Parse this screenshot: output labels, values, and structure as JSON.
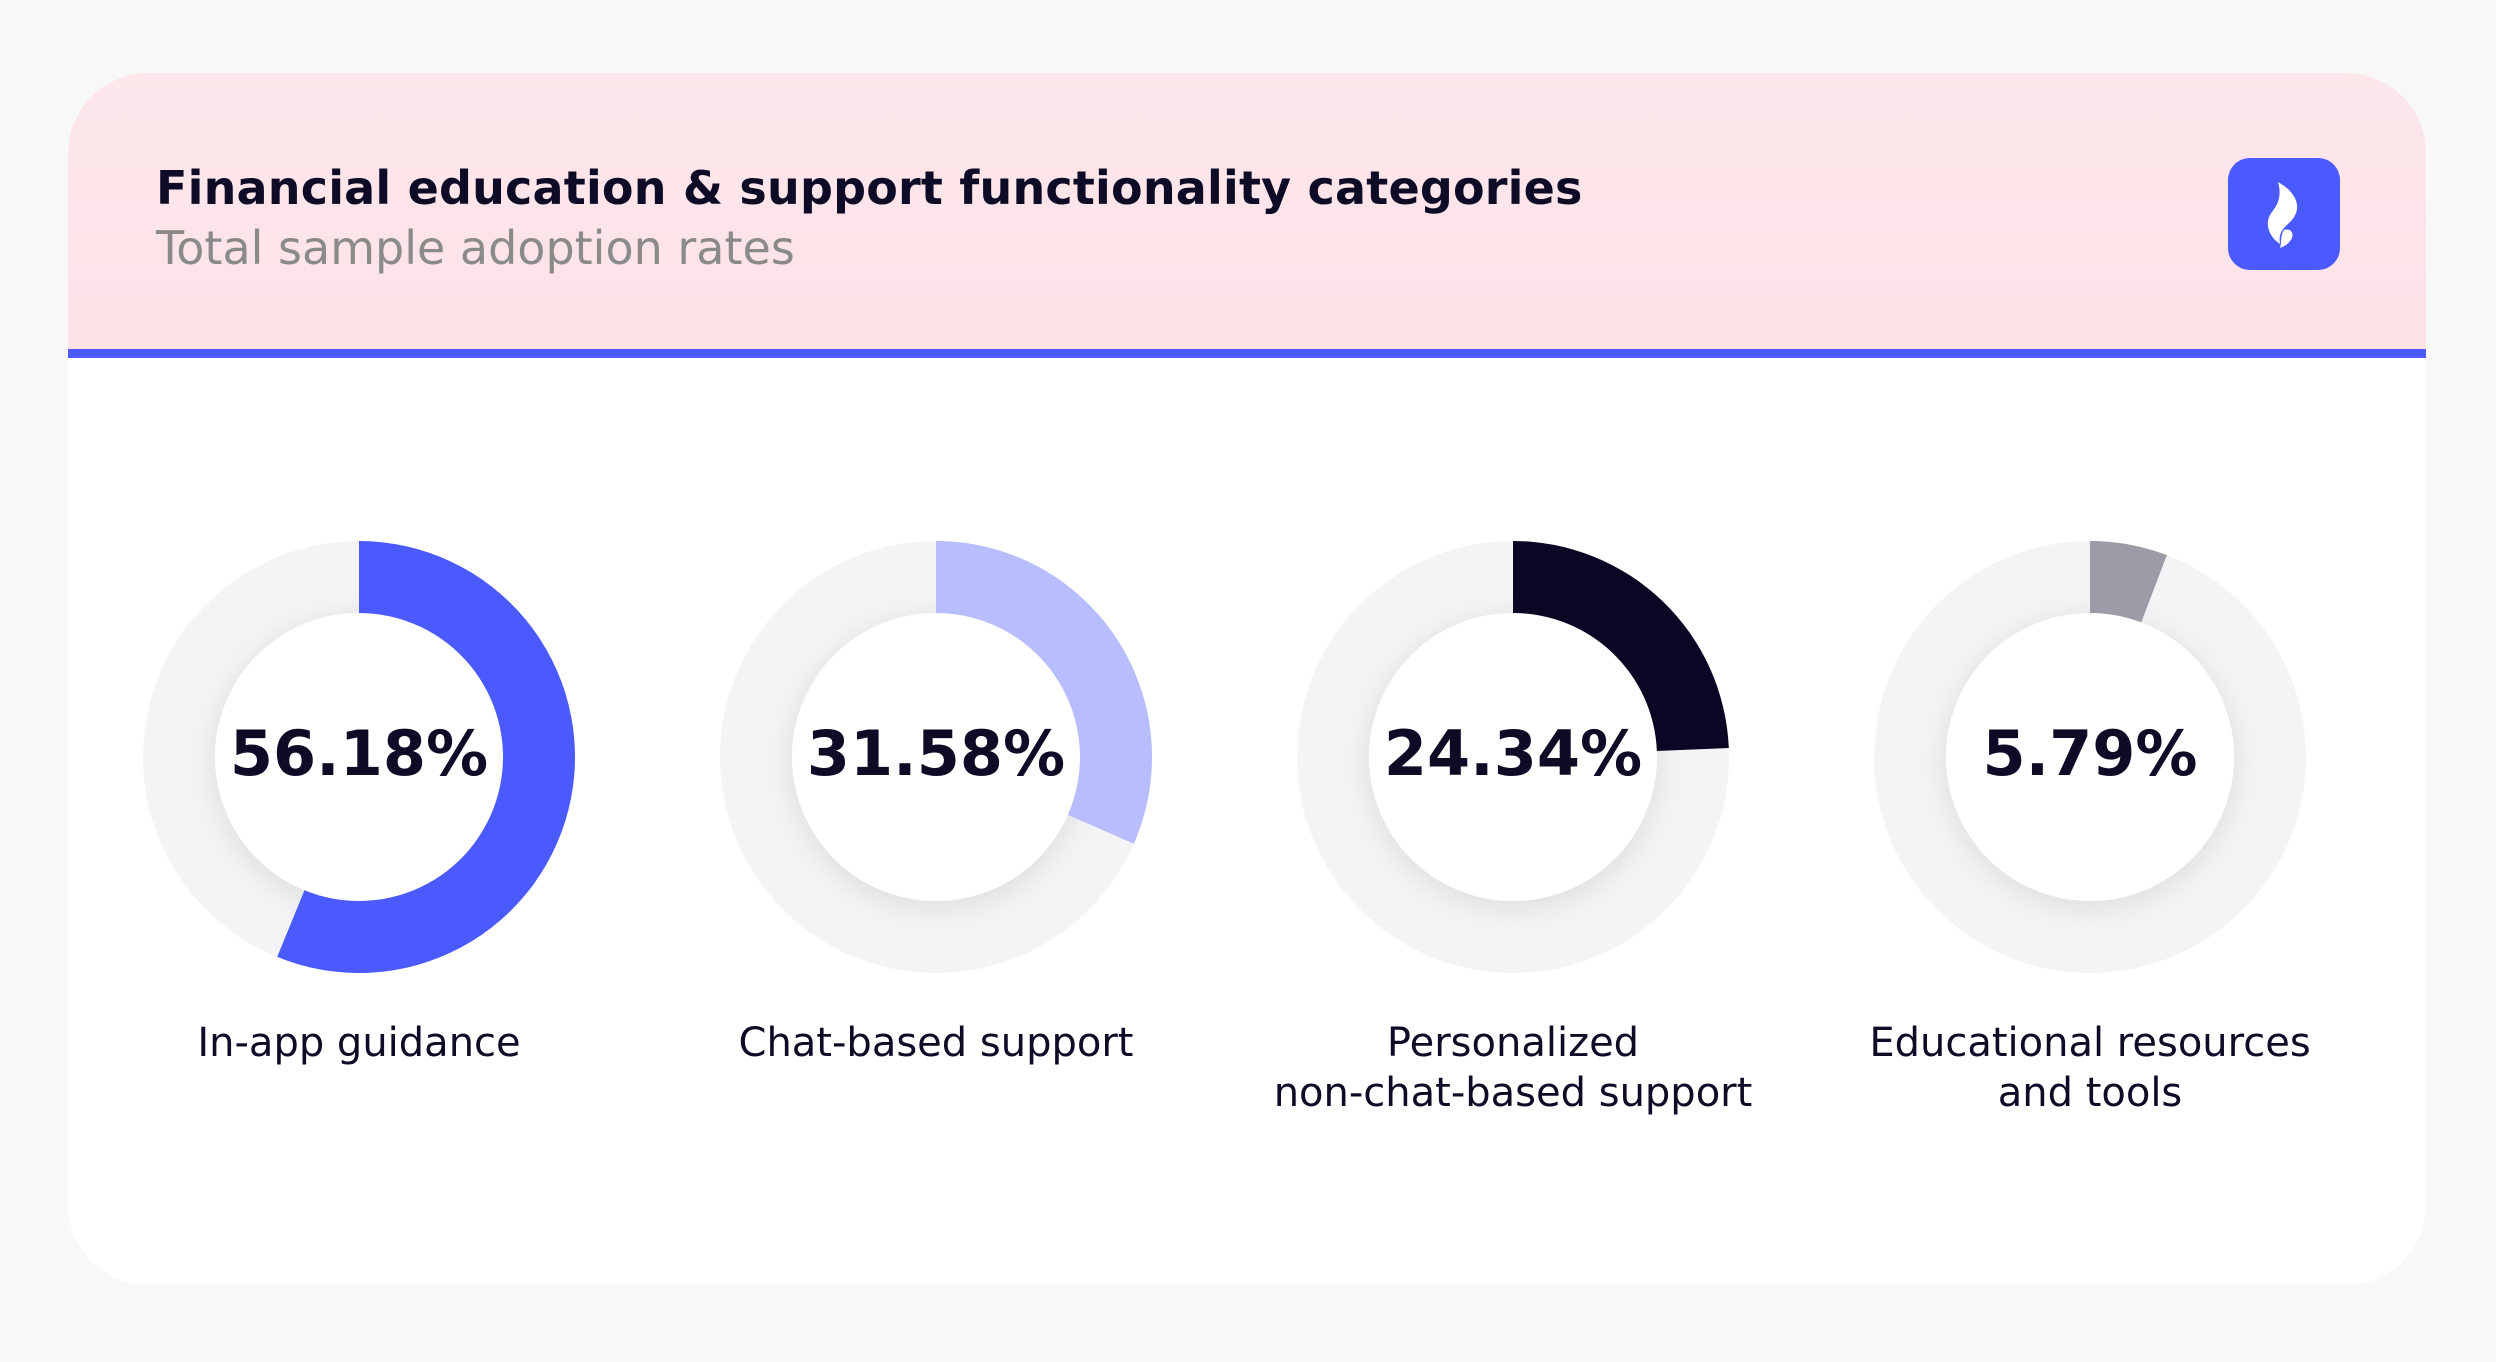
{
  "header": {
    "title": "Financial education & support functionality categories",
    "subtitle": "Total sample adoption rates",
    "logo_icon": "brand-logo-icon",
    "accent_color": "#4a5aff",
    "header_background": "#fde5ea"
  },
  "chart_data": {
    "type": "donut",
    "title": "Financial education & support functionality categories",
    "subtitle": "Total sample adoption rates",
    "unit": "%",
    "track_color": "#f4f4f6",
    "items": [
      {
        "label_lines": [
          "In-app guidance"
        ],
        "value": 56.18,
        "display": "56.18%",
        "color": "#4a5aff"
      },
      {
        "label_lines": [
          "Chat-based support"
        ],
        "value": 31.58,
        "display": "31.58%",
        "color": "#b7bdfd"
      },
      {
        "label_lines": [
          "Personalized",
          "non-chat-based support"
        ],
        "value": 24.34,
        "display": "24.34%",
        "color": "#0a0725"
      },
      {
        "label_lines": [
          "Educational resources",
          "and tools"
        ],
        "value": 5.79,
        "display": "5.79%",
        "color": "#9e9ba8"
      }
    ]
  }
}
